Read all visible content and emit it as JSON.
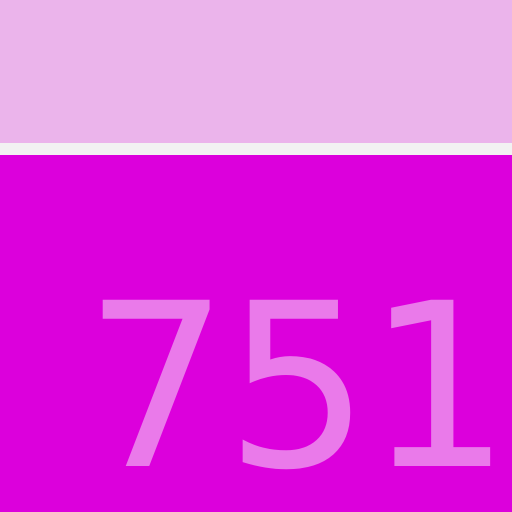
{
  "colors": {
    "top_bar": "#ebb4eb",
    "divider": "#f2f2f2",
    "main_panel": "#dc00dc",
    "counter_text": "#ea7aea"
  },
  "main": {
    "counter_value": "751"
  }
}
